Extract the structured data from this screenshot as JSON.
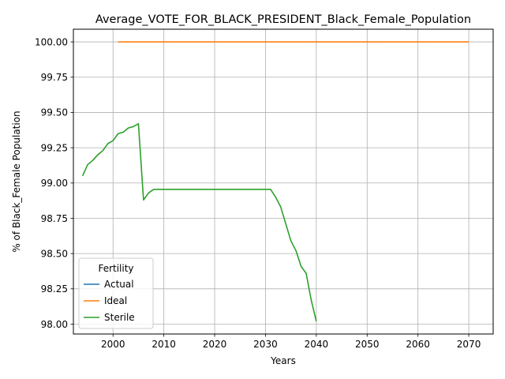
{
  "chart_data": {
    "type": "line",
    "title": "Average_VOTE_FOR_BLACK_PRESIDENT_Black_Female_Population",
    "xlabel": "Years",
    "ylabel": "% of Black_Female Population",
    "xlim": [
      1992.2,
      2074.8
    ],
    "ylim": [
      97.93,
      100.09
    ],
    "xticks": [
      2000,
      2010,
      2020,
      2030,
      2040,
      2050,
      2060,
      2070
    ],
    "yticks": [
      98.0,
      98.25,
      98.5,
      98.75,
      99.0,
      99.25,
      99.5,
      99.75,
      100.0
    ],
    "grid": true,
    "legend": {
      "title": "Fertility",
      "placement": "lower-left"
    },
    "series": [
      {
        "name": "Actual",
        "color": "#1f77b4",
        "x": [],
        "y": []
      },
      {
        "name": "Ideal",
        "color": "#ff7f0e",
        "x": [
          2001,
          2010,
          2020,
          2030,
          2040,
          2050,
          2060,
          2070
        ],
        "y": [
          100.0,
          100.0,
          100.0,
          100.0,
          100.0,
          100.0,
          100.0,
          100.0
        ]
      },
      {
        "name": "Sterile",
        "color": "#2ca02c",
        "x": [
          1994,
          1995,
          1996,
          1997,
          1998,
          1999,
          2000,
          2001,
          2002,
          2003,
          2004,
          2005,
          2006,
          2007,
          2008,
          2009,
          2010,
          2015,
          2020,
          2025,
          2030,
          2031,
          2032,
          2033,
          2034,
          2035,
          2036,
          2037,
          2038,
          2039,
          2040
        ],
        "y": [
          99.05,
          99.13,
          99.16,
          99.2,
          99.23,
          99.28,
          99.3,
          99.35,
          99.36,
          99.39,
          99.4,
          99.42,
          98.88,
          98.93,
          98.955,
          98.955,
          98.955,
          98.955,
          98.955,
          98.955,
          98.955,
          98.955,
          98.9,
          98.83,
          98.71,
          98.59,
          98.52,
          98.41,
          98.36,
          98.17,
          98.02
        ]
      }
    ]
  }
}
